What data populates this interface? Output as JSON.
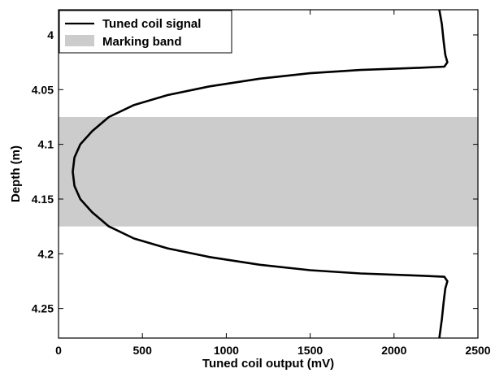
{
  "chart_data": {
    "type": "line",
    "title": "",
    "xlabel": "Tuned coil output (mV)",
    "ylabel": "Depth (m)",
    "xlim": [
      0,
      2500
    ],
    "ylim": [
      3.977,
      4.277
    ],
    "y_inverted": true,
    "x_ticks": [
      0,
      500,
      1000,
      1500,
      2000,
      2500
    ],
    "x_tick_labels": [
      "0",
      "500",
      "1000",
      "1500",
      "2000",
      "2500"
    ],
    "y_ticks": [
      4.0,
      4.05,
      4.1,
      4.15,
      4.2,
      4.25
    ],
    "y_tick_labels": [
      "4",
      "4.05",
      "4.1",
      "4.15",
      "4.2",
      "4.25"
    ],
    "grid": false,
    "legend_position": "top-left",
    "series": [
      {
        "name": "Tuned coil signal",
        "color": "#000000",
        "points": [
          [
            2270,
            3.977
          ],
          [
            2285,
            3.99
          ],
          [
            2295,
            4.005
          ],
          [
            2305,
            4.018
          ],
          [
            2318,
            4.025
          ],
          [
            2300,
            4.029
          ],
          [
            2150,
            4.03
          ],
          [
            1800,
            4.032
          ],
          [
            1500,
            4.035
          ],
          [
            1200,
            4.04
          ],
          [
            900,
            4.047
          ],
          [
            650,
            4.055
          ],
          [
            450,
            4.064
          ],
          [
            300,
            4.075
          ],
          [
            200,
            4.088
          ],
          [
            130,
            4.1
          ],
          [
            95,
            4.112
          ],
          [
            85,
            4.125
          ],
          [
            95,
            4.138
          ],
          [
            130,
            4.15
          ],
          [
            200,
            4.162
          ],
          [
            300,
            4.175
          ],
          [
            450,
            4.186
          ],
          [
            650,
            4.195
          ],
          [
            900,
            4.203
          ],
          [
            1200,
            4.21
          ],
          [
            1500,
            4.215
          ],
          [
            1800,
            4.218
          ],
          [
            2150,
            4.22
          ],
          [
            2300,
            4.221
          ],
          [
            2318,
            4.225
          ],
          [
            2305,
            4.232
          ],
          [
            2295,
            4.245
          ],
          [
            2285,
            4.26
          ],
          [
            2270,
            4.277
          ]
        ]
      }
    ],
    "bands": [
      {
        "name": "Marking band",
        "color": "#cccccc",
        "y_from": 4.075,
        "y_to": 4.175
      }
    ]
  }
}
